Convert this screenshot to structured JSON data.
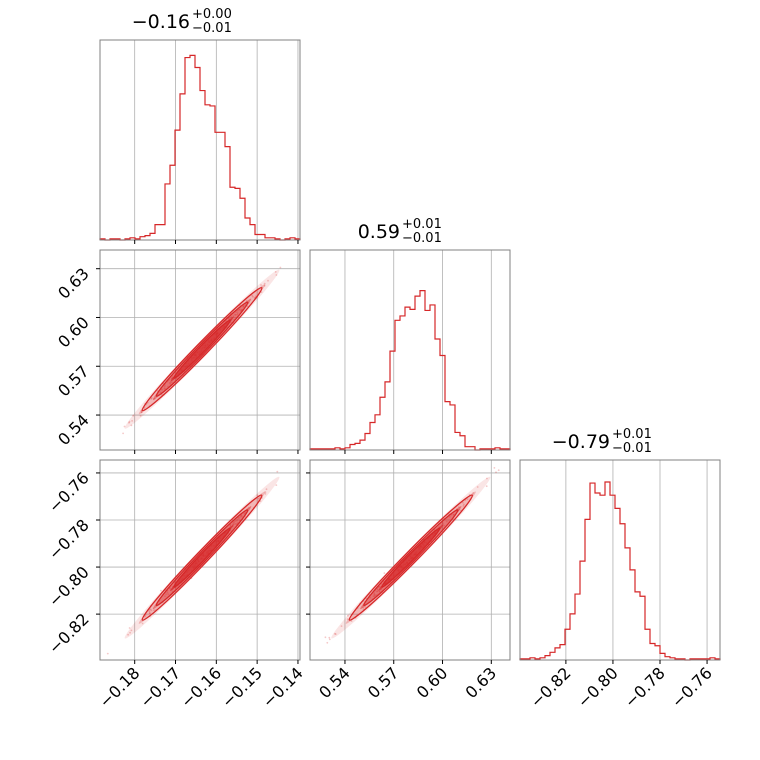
{
  "chart_data": {
    "type": "corner",
    "color": "#d62728",
    "grid": true,
    "params": [
      {
        "median": "−0.16",
        "plus": "+0.00",
        "minus": "−0.01",
        "range": [
          -0.1885,
          -0.1395
        ],
        "ticks": [
          -0.18,
          -0.17,
          -0.16,
          -0.15,
          -0.14
        ],
        "tick_labels": [
          "−0.18",
          "−0.17",
          "−0.16",
          "−0.15",
          "−0.14"
        ],
        "hist_max": 182
      },
      {
        "median": "0.59",
        "plus": "+0.01",
        "minus": "−0.01",
        "range": [
          0.5185,
          0.6415
        ],
        "ticks": [
          0.54,
          0.57,
          0.6,
          0.63
        ],
        "tick_labels": [
          "0.54",
          "0.57",
          "0.60",
          "0.63"
        ],
        "hist_max": 182
      },
      {
        "median": "−0.79",
        "plus": "+0.01",
        "minus": "−0.01",
        "range": [
          -0.8395,
          -0.7545
        ],
        "ticks": [
          -0.82,
          -0.8,
          -0.78,
          -0.76
        ],
        "tick_labels": [
          "−0.82",
          "−0.80",
          "−0.78",
          "−0.76"
        ],
        "hist_max": 182
      }
    ],
    "histograms": [
      [
        1,
        0,
        1,
        1,
        0,
        1,
        2,
        1,
        3,
        4,
        6,
        14,
        14,
        51,
        68,
        100,
        133,
        166,
        168,
        157,
        136,
        123,
        122,
        98,
        98,
        85,
        48,
        47,
        38,
        20,
        14,
        5,
        5,
        2,
        2,
        1,
        0,
        1,
        2,
        1
      ],
      [
        1,
        1,
        1,
        1,
        1,
        2,
        1,
        2,
        5,
        6,
        9,
        15,
        25,
        32,
        48,
        62,
        90,
        118,
        122,
        130,
        128,
        140,
        145,
        127,
        132,
        101,
        86,
        44,
        41,
        16,
        13,
        3,
        3,
        0,
        1,
        1,
        1,
        2,
        1,
        1
      ],
      [
        1,
        1,
        2,
        1,
        2,
        4,
        7,
        11,
        14,
        28,
        42,
        60,
        90,
        128,
        161,
        152,
        150,
        162,
        150,
        138,
        124,
        102,
        82,
        62,
        58,
        28,
        15,
        13,
        6,
        3,
        2,
        1,
        1,
        0,
        1,
        1,
        1,
        1,
        2,
        1
      ]
    ],
    "correlations": {
      "1,0": 0.99,
      "2,0": 0.99,
      "2,1": 0.99
    },
    "scatter_extent": [
      [
        -0.185,
        0.525,
        -0.835
      ],
      [
        -0.142,
        0.636,
        -0.757
      ]
    ]
  }
}
